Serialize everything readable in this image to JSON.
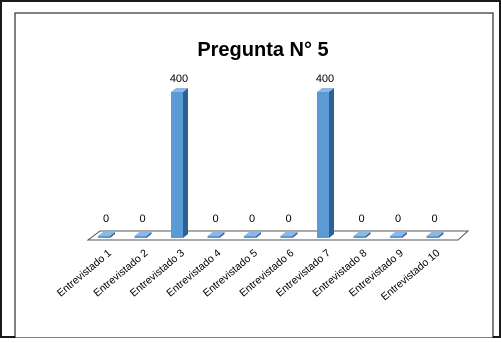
{
  "chart_data": {
    "type": "bar",
    "title": "Pregunta N° 5",
    "categories": [
      "Entrevistado 1",
      "Entrevistado 2",
      "Entrevistado 3",
      "Entrevistado 4",
      "Entrevistado 5",
      "Entrevistado 6",
      "Entrevistado 7",
      "Entrevistado 8",
      "Entrevistado 9",
      "Entrevistado 10"
    ],
    "values": [
      0,
      0,
      400,
      0,
      0,
      0,
      400,
      0,
      0,
      0
    ],
    "data_labels": [
      "0",
      "0",
      "400",
      "0",
      "0",
      "0",
      "400",
      "0",
      "0",
      "0"
    ],
    "ylim": [
      0,
      400
    ],
    "grid": false,
    "legend": "none",
    "style": "3d-column",
    "colors": {
      "bar_front": "#5b9bd5",
      "bar_side": "#2e5f95",
      "bar_top": "#8db8e6",
      "floor": "#ffffff",
      "floor_stroke": "#555555",
      "frame": "#000000"
    }
  }
}
